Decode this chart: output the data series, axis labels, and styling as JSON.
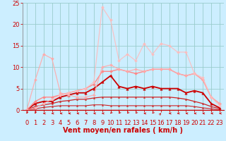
{
  "title": "",
  "xlabel": "Vent moyen/en rafales ( km/h )",
  "bg_color": "#cceeff",
  "grid_color": "#99cccc",
  "xlim": [
    -0.5,
    23.5
  ],
  "ylim": [
    0,
    25
  ],
  "yticks": [
    0,
    5,
    10,
    15,
    20,
    25
  ],
  "xticks": [
    0,
    1,
    2,
    3,
    4,
    5,
    6,
    7,
    8,
    9,
    10,
    11,
    12,
    13,
    14,
    15,
    16,
    17,
    18,
    19,
    20,
    21,
    22,
    23
  ],
  "lines": [
    {
      "x": [
        0,
        1,
        2,
        3,
        4,
        5,
        6,
        7,
        8,
        9,
        10,
        11,
        12,
        13,
        14,
        15,
        16,
        17,
        18,
        19,
        20,
        21,
        22,
        23
      ],
      "y": [
        0,
        0,
        0,
        0,
        0,
        0,
        0,
        0,
        0,
        0,
        0,
        0,
        0,
        0,
        0,
        0,
        0,
        0,
        0,
        0,
        0,
        0,
        0,
        0
      ],
      "color": "#cc0000",
      "lw": 1.0,
      "marker": null,
      "markersize": 0,
      "alpha": 1.0
    },
    {
      "x": [
        0,
        1,
        2,
        3,
        4,
        5,
        6,
        7,
        8,
        9,
        10,
        11,
        12,
        13,
        14,
        15,
        16,
        17,
        18,
        19,
        20,
        21,
        22,
        23
      ],
      "y": [
        0,
        0.3,
        0.6,
        0.8,
        1.0,
        1.0,
        1.0,
        1.0,
        1.2,
        1.2,
        1.0,
        1.0,
        1.0,
        1.0,
        1.0,
        1.0,
        1.0,
        1.0,
        1.0,
        1.0,
        0.8,
        0.5,
        0.3,
        0
      ],
      "color": "#cc2222",
      "lw": 0.8,
      "marker": "^",
      "markersize": 1.5,
      "alpha": 1.0
    },
    {
      "x": [
        0,
        1,
        2,
        3,
        4,
        5,
        6,
        7,
        8,
        9,
        10,
        11,
        12,
        13,
        14,
        15,
        16,
        17,
        18,
        19,
        20,
        21,
        22,
        23
      ],
      "y": [
        0,
        0.8,
        1.2,
        1.5,
        2.0,
        2.2,
        2.5,
        2.5,
        2.8,
        3.0,
        3.0,
        3.0,
        3.0,
        3.0,
        3.0,
        3.0,
        3.0,
        3.0,
        2.8,
        2.5,
        2.0,
        1.5,
        0.8,
        0.3
      ],
      "color": "#cc2222",
      "lw": 0.9,
      "marker": "^",
      "markersize": 1.5,
      "alpha": 1.0
    },
    {
      "x": [
        0,
        1,
        2,
        3,
        4,
        5,
        6,
        7,
        8,
        9,
        10,
        11,
        12,
        13,
        14,
        15,
        16,
        17,
        18,
        19,
        20,
        21,
        22,
        23
      ],
      "y": [
        0,
        1.5,
        2.0,
        2.0,
        3.0,
        3.5,
        4.0,
        4.0,
        5.0,
        6.5,
        8.0,
        5.5,
        5.0,
        5.5,
        5.0,
        5.5,
        5.0,
        5.0,
        5.0,
        4.0,
        4.5,
        4.0,
        1.5,
        0.5
      ],
      "color": "#cc0000",
      "lw": 1.3,
      "marker": "^",
      "markersize": 2.5,
      "alpha": 1.0
    },
    {
      "x": [
        0,
        1,
        2,
        3,
        4,
        5,
        6,
        7,
        8,
        9,
        10,
        11,
        12,
        13,
        14,
        15,
        16,
        17,
        18,
        19,
        20,
        21,
        22,
        23
      ],
      "y": [
        0,
        2.0,
        3.0,
        3.0,
        3.5,
        4.0,
        4.5,
        5.0,
        6.0,
        9.0,
        9.0,
        9.5,
        9.0,
        8.5,
        9.0,
        9.5,
        9.5,
        9.5,
        8.5,
        8.0,
        8.5,
        7.0,
        3.0,
        1.5
      ],
      "color": "#ff8888",
      "lw": 1.0,
      "marker": "D",
      "markersize": 2,
      "alpha": 1.0
    },
    {
      "x": [
        0,
        1,
        2,
        3,
        4,
        5,
        6,
        7,
        8,
        9,
        10,
        11,
        12,
        13,
        14,
        15,
        16,
        17,
        18,
        19,
        20,
        21,
        22,
        23
      ],
      "y": [
        0,
        7.0,
        13.0,
        12.0,
        4.0,
        3.5,
        3.0,
        3.0,
        3.5,
        10.0,
        10.5,
        9.5,
        9.0,
        9.5,
        9.0,
        9.5,
        9.5,
        9.5,
        8.5,
        8.0,
        8.5,
        7.0,
        3.0,
        1.5
      ],
      "color": "#ffaaaa",
      "lw": 0.9,
      "marker": "D",
      "markersize": 2,
      "alpha": 0.9
    },
    {
      "x": [
        0,
        1,
        2,
        3,
        4,
        5,
        6,
        7,
        8,
        9,
        10,
        11,
        12,
        13,
        14,
        15,
        16,
        17,
        18,
        19,
        20,
        21,
        22,
        23
      ],
      "y": [
        0,
        0.5,
        1.5,
        2.5,
        3.5,
        4.0,
        4.5,
        5.0,
        6.5,
        24.0,
        21.0,
        11.5,
        13.0,
        11.5,
        15.5,
        13.0,
        15.5,
        15.0,
        13.5,
        13.5,
        8.5,
        7.5,
        3.0,
        1.0
      ],
      "color": "#ffbbbb",
      "lw": 0.9,
      "marker": "D",
      "markersize": 2,
      "alpha": 0.85
    }
  ],
  "arrow_angles": [
    200,
    200,
    270,
    270,
    270,
    270,
    270,
    270,
    270,
    270,
    225,
    225,
    225,
    225,
    270,
    225,
    45,
    270,
    270,
    270,
    270,
    270,
    270,
    270
  ],
  "font_color": "#cc0000",
  "xlabel_fontsize": 7,
  "tick_fontsize": 6,
  "ylabel_fontsize": 6
}
